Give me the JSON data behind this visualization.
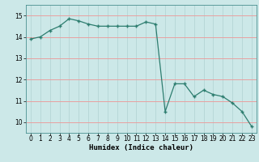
{
  "x": [
    0,
    1,
    2,
    3,
    4,
    5,
    6,
    7,
    8,
    9,
    10,
    11,
    12,
    13,
    14,
    15,
    16,
    17,
    18,
    19,
    20,
    21,
    22,
    23
  ],
  "y": [
    13.9,
    14.0,
    14.3,
    14.5,
    14.85,
    14.75,
    14.6,
    14.5,
    14.5,
    14.5,
    14.5,
    14.5,
    14.7,
    14.6,
    10.5,
    11.8,
    11.8,
    11.2,
    11.5,
    11.3,
    11.2,
    10.9,
    10.5,
    9.8
  ],
  "line_color": "#2d7d6f",
  "marker": "+",
  "marker_size": 3.5,
  "marker_lw": 1.0,
  "line_width": 0.9,
  "bg_color": "#cce8e8",
  "hgrid_color": "#e8a0a0",
  "vgrid_color": "#b8d8d8",
  "xlabel": "Humidex (Indice chaleur)",
  "xlim": [
    -0.5,
    23.5
  ],
  "ylim": [
    9.5,
    15.5
  ],
  "yticks": [
    10,
    11,
    12,
    13,
    14,
    15
  ],
  "xticks": [
    0,
    1,
    2,
    3,
    4,
    5,
    6,
    7,
    8,
    9,
    10,
    11,
    12,
    13,
    14,
    15,
    16,
    17,
    18,
    19,
    20,
    21,
    22,
    23
  ],
  "xlabel_fontsize": 6.5,
  "tick_fontsize": 5.5,
  "spine_color": "#4a9090"
}
